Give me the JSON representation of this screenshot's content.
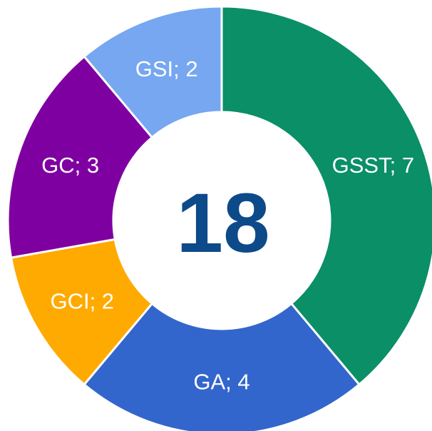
{
  "chart_data": {
    "type": "donut",
    "categories": [
      "GSST",
      "GA",
      "GCI",
      "GC",
      "GSI"
    ],
    "values": [
      7,
      4,
      2,
      3,
      2
    ],
    "value_labels": [
      "GSST; 7",
      "GA; 4",
      "GCI; 2",
      "GC; 3",
      "GSI; 2"
    ],
    "colors": [
      "#0a8f66",
      "#3366cc",
      "#ffaa00",
      "#7f00a0",
      "#76a7f0"
    ],
    "total": 18
  }
}
